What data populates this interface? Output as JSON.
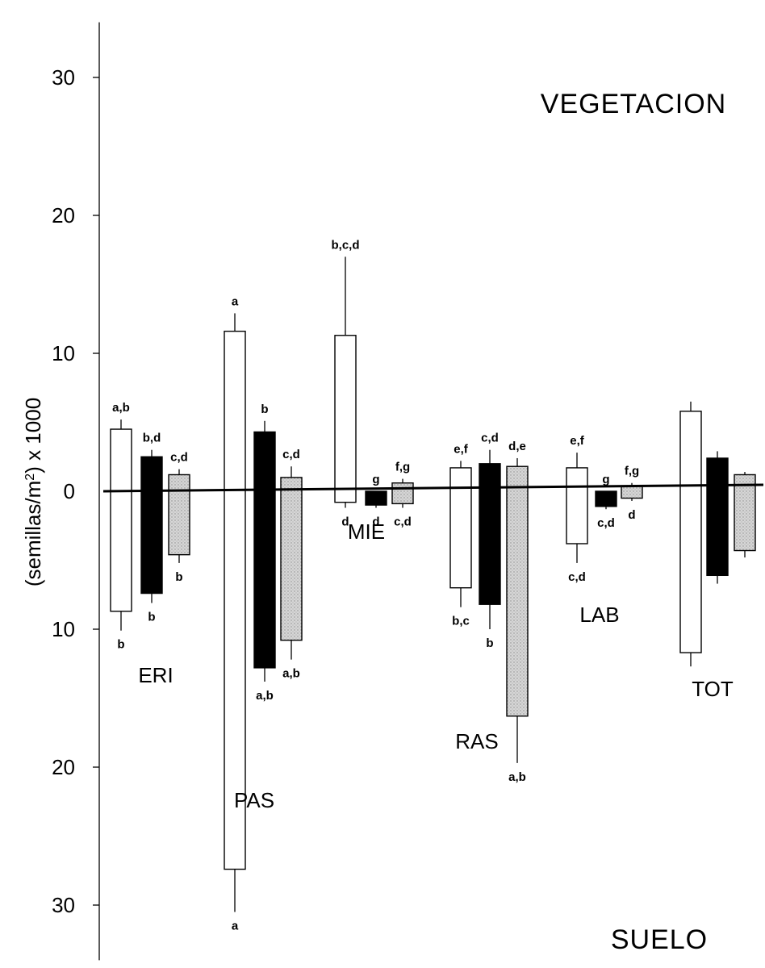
{
  "chart_data": {
    "type": "bar",
    "ylabel_prefix": "(semillas/m",
    "ylabel_sup": "2",
    "ylabel_suffix": ") x 1000",
    "top_label": "VEGETACION",
    "bottom_label": "SUELO",
    "yticks_top": [
      "10",
      "20",
      "30"
    ],
    "yticks_bottom": [
      "10",
      "20",
      "30"
    ],
    "zero_label": "0",
    "ylim_top": 34,
    "ylim_bottom": 34,
    "colors": {
      "white": "#ffffff",
      "black": "#000000",
      "stippled": "#c4c4c4"
    },
    "groups": [
      {
        "label": "ERI",
        "bars": [
          {
            "fill": "white",
            "top": 4.5,
            "top_err": 5.2,
            "bottom": 8.7,
            "bottom_err": 10.1,
            "top_sig": "a,b",
            "bottom_sig": "b"
          },
          {
            "fill": "black",
            "top": 2.5,
            "top_err": 3.0,
            "bottom": 7.4,
            "bottom_err": 8.1,
            "top_sig": "b,d",
            "bottom_sig": "b"
          },
          {
            "fill": "stippled",
            "top": 1.2,
            "top_err": 1.6,
            "bottom": 4.6,
            "bottom_err": 5.2,
            "top_sig": "c,d",
            "bottom_sig": "b"
          }
        ]
      },
      {
        "label": "PAS",
        "bars": [
          {
            "fill": "white",
            "top": 11.6,
            "top_err": 12.9,
            "bottom": 27.4,
            "bottom_err": 30.5,
            "top_sig": "a",
            "bottom_sig": "a"
          },
          {
            "fill": "black",
            "top": 4.3,
            "top_err": 5.1,
            "bottom": 12.8,
            "bottom_err": 13.8,
            "top_sig": "b",
            "bottom_sig": "a,b"
          },
          {
            "fill": "stippled",
            "top": 1.0,
            "top_err": 1.8,
            "bottom": 10.8,
            "bottom_err": 12.2,
            "top_sig": "c,d",
            "bottom_sig": "a,b"
          }
        ]
      },
      {
        "label": "MIE",
        "bars": [
          {
            "fill": "white",
            "top": 11.3,
            "top_err": 17.0,
            "bottom": 0.8,
            "bottom_err": 1.2,
            "top_sig": "b,c,d",
            "bottom_sig": "d"
          },
          {
            "fill": "black",
            "top": 0.0,
            "top_err": 0.0,
            "bottom": 1.0,
            "bottom_err": 1.2,
            "top_sig": "g",
            "bottom_sig": "d"
          },
          {
            "fill": "stippled",
            "top": 0.6,
            "top_err": 0.9,
            "bottom": 0.9,
            "bottom_err": 1.2,
            "top_sig": "f,g",
            "bottom_sig": "c,d"
          }
        ]
      },
      {
        "label": "RAS",
        "bars": [
          {
            "fill": "white",
            "top": 1.7,
            "top_err": 2.2,
            "bottom": 7.0,
            "bottom_err": 8.4,
            "top_sig": "e,f",
            "bottom_sig": "b,c"
          },
          {
            "fill": "black",
            "top": 2.0,
            "top_err": 3.0,
            "bottom": 8.2,
            "bottom_err": 10.0,
            "top_sig": "c,d",
            "bottom_sig": "b"
          },
          {
            "fill": "stippled",
            "top": 1.8,
            "top_err": 2.4,
            "bottom": 16.3,
            "bottom_err": 19.7,
            "top_sig": "d,e",
            "bottom_sig": "a,b"
          }
        ]
      },
      {
        "label": "LAB",
        "bars": [
          {
            "fill": "white",
            "top": 1.7,
            "top_err": 2.8,
            "bottom": 3.8,
            "bottom_err": 5.2,
            "top_sig": "e,f",
            "bottom_sig": "c,d"
          },
          {
            "fill": "black",
            "top": 0.0,
            "top_err": 0.0,
            "bottom": 1.1,
            "bottom_err": 1.3,
            "top_sig": "g",
            "bottom_sig": "c,d"
          },
          {
            "fill": "stippled",
            "top": 0.4,
            "top_err": 0.6,
            "bottom": 0.5,
            "bottom_err": 0.7,
            "top_sig": "f,g",
            "bottom_sig": "d"
          }
        ]
      },
      {
        "label": "TOT",
        "bars": [
          {
            "fill": "white",
            "top": 5.8,
            "top_err": 6.5,
            "bottom": 11.7,
            "bottom_err": 12.7,
            "top_sig": "",
            "bottom_sig": ""
          },
          {
            "fill": "black",
            "top": 2.4,
            "top_err": 2.9,
            "bottom": 6.1,
            "bottom_err": 6.7,
            "top_sig": "",
            "bottom_sig": ""
          },
          {
            "fill": "stippled",
            "top": 1.2,
            "top_err": 1.4,
            "bottom": 4.3,
            "bottom_err": 4.8,
            "top_sig": "",
            "bottom_sig": ""
          }
        ]
      }
    ]
  }
}
